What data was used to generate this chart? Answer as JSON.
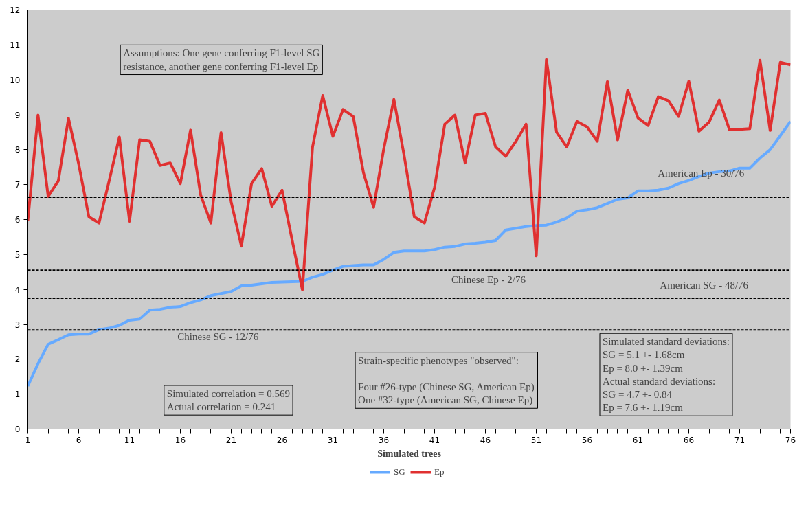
{
  "chart_data": {
    "type": "line",
    "xlabel": "Simulated trees",
    "x": [
      1,
      2,
      3,
      4,
      5,
      6,
      7,
      8,
      9,
      10,
      11,
      12,
      13,
      14,
      15,
      16,
      17,
      18,
      19,
      20,
      21,
      22,
      23,
      24,
      25,
      26,
      27,
      28,
      29,
      30,
      31,
      32,
      33,
      34,
      35,
      36,
      37,
      38,
      39,
      40,
      41,
      42,
      43,
      44,
      45,
      46,
      47,
      48,
      49,
      50,
      51,
      52,
      53,
      54,
      55,
      56,
      57,
      58,
      59,
      60,
      61,
      62,
      63,
      64,
      65,
      66,
      67,
      68,
      69,
      70,
      71,
      72,
      73,
      74,
      75,
      76
    ],
    "series": [
      {
        "name": "SG",
        "color": "#66aaff",
        "values": [
          1.23,
          1.87,
          2.43,
          2.56,
          2.7,
          2.72,
          2.72,
          2.85,
          2.89,
          2.97,
          3.12,
          3.15,
          3.41,
          3.43,
          3.49,
          3.51,
          3.62,
          3.7,
          3.82,
          3.88,
          3.94,
          4.1,
          4.12,
          4.16,
          4.2,
          4.21,
          4.22,
          4.23,
          4.35,
          4.43,
          4.55,
          4.66,
          4.68,
          4.7,
          4.7,
          4.86,
          5.06,
          5.1,
          5.1,
          5.1,
          5.14,
          5.21,
          5.23,
          5.3,
          5.32,
          5.35,
          5.4,
          5.7,
          5.75,
          5.8,
          5.83,
          5.84,
          5.93,
          6.04,
          6.24,
          6.28,
          6.34,
          6.46,
          6.58,
          6.62,
          6.82,
          6.82,
          6.84,
          6.9,
          7.03,
          7.12,
          7.23,
          7.33,
          7.37,
          7.39,
          7.47,
          7.47,
          7.76,
          8.0,
          8.4,
          8.81
        ]
      },
      {
        "name": "Ep",
        "color": "#e03030",
        "values": [
          5.97,
          8.99,
          6.66,
          7.11,
          8.9,
          7.59,
          6.08,
          5.9,
          7.11,
          8.36,
          5.95,
          8.28,
          8.24,
          7.55,
          7.62,
          7.03,
          8.56,
          6.7,
          5.9,
          8.49,
          6.5,
          5.24,
          7.03,
          7.46,
          6.38,
          6.84,
          5.4,
          3.99,
          8.08,
          9.55,
          8.38,
          9.15,
          8.95,
          7.35,
          6.35,
          8.02,
          9.44,
          7.84,
          6.08,
          5.9,
          6.92,
          8.73,
          8.99,
          7.62,
          8.99,
          9.04,
          8.08,
          7.81,
          8.24,
          8.73,
          4.96,
          10.58,
          8.5,
          8.08,
          8.81,
          8.65,
          8.24,
          9.95,
          8.28,
          9.7,
          8.91,
          8.69,
          9.52,
          9.4,
          8.95,
          9.96,
          8.53,
          8.79,
          9.42,
          8.57,
          8.58,
          8.6,
          10.56,
          8.55,
          10.5,
          10.43
        ]
      }
    ],
    "xlim": [
      1,
      76
    ],
    "xticks": [
      1,
      {
        "value": 2,
        "label": null
      },
      {
        "value": 3,
        "label": null
      },
      {
        "value": 4,
        "label": null
      },
      {
        "value": 5,
        "label": null
      },
      6,
      {
        "value": 7,
        "label": null
      },
      {
        "value": 8,
        "label": null
      },
      {
        "value": 9,
        "label": null
      },
      {
        "value": 10,
        "label": null
      },
      11,
      {
        "value": 12,
        "label": null
      },
      {
        "value": 13,
        "label": null
      },
      {
        "value": 14,
        "label": null
      },
      {
        "value": 15,
        "label": null
      },
      16,
      {
        "value": 17,
        "label": null
      },
      {
        "value": 18,
        "label": null
      },
      {
        "value": 19,
        "label": null
      },
      {
        "value": 20,
        "label": null
      },
      21,
      {
        "value": 22,
        "label": null
      },
      {
        "value": 23,
        "label": null
      },
      {
        "value": 24,
        "label": null
      },
      {
        "value": 25,
        "label": null
      },
      26,
      {
        "value": 27,
        "label": null
      },
      {
        "value": 28,
        "label": null
      },
      {
        "value": 29,
        "label": null
      },
      {
        "value": 30,
        "label": null
      },
      31,
      {
        "value": 32,
        "label": null
      },
      {
        "value": 33,
        "label": null
      },
      {
        "value": 34,
        "label": null
      },
      {
        "value": 35,
        "label": null
      },
      36,
      {
        "value": 37,
        "label": null
      },
      {
        "value": 38,
        "label": null
      },
      {
        "value": 39,
        "label": null
      },
      {
        "value": 40,
        "label": null
      },
      41,
      {
        "value": 42,
        "label": null
      },
      {
        "value": 43,
        "label": null
      },
      {
        "value": 44,
        "label": null
      },
      {
        "value": 45,
        "label": null
      },
      46,
      {
        "value": 47,
        "label": null
      },
      {
        "value": 48,
        "label": null
      },
      {
        "value": 49,
        "label": null
      },
      {
        "value": 50,
        "label": null
      },
      51,
      {
        "value": 52,
        "label": null
      },
      {
        "value": 53,
        "label": null
      },
      {
        "value": 54,
        "label": null
      },
      {
        "value": 55,
        "label": null
      },
      56,
      {
        "value": 57,
        "label": null
      },
      {
        "value": 58,
        "label": null
      },
      {
        "value": 59,
        "label": null
      },
      {
        "value": 60,
        "label": null
      },
      61,
      {
        "value": 62,
        "label": null
      },
      {
        "value": 63,
        "label": null
      },
      {
        "value": 64,
        "label": null
      },
      {
        "value": 65,
        "label": null
      },
      66,
      {
        "value": 67,
        "label": null
      },
      {
        "value": 68,
        "label": null
      },
      {
        "value": 69,
        "label": null
      },
      {
        "value": 70,
        "label": null
      },
      71,
      {
        "value": 72,
        "label": null
      },
      {
        "value": 73,
        "label": null
      },
      {
        "value": 74,
        "label": null
      },
      {
        "value": 75,
        "label": null
      },
      76
    ],
    "ylim": [
      0,
      12
    ],
    "yticks": [
      0,
      1,
      2,
      3,
      4,
      5,
      6,
      7,
      8,
      9,
      10,
      11,
      12
    ],
    "grid": false,
    "legend": "bottom",
    "marker": "none",
    "line_style": "solid",
    "ref_lines": [
      {
        "axis": "y",
        "value": 6.64,
        "color": "#000000",
        "line_style": "dashed"
      },
      {
        "axis": "y",
        "value": 4.55,
        "color": "#000000",
        "line_style": "dashed"
      },
      {
        "axis": "y",
        "value": 3.75,
        "color": "#000000",
        "line_style": "dashed"
      },
      {
        "axis": "y",
        "value": 2.84,
        "color": "#000000",
        "line_style": "dashed"
      }
    ],
    "annotations": [
      "Assumptions: One gene conferring F1-level SG\nresistance, another gene conferring F1-level Ep",
      "Simulated correlation = 0.569\nActual correlation = 0.241",
      "Strain-specific phenotypes \"observed\":\n\nFour #26-type (Chinese SG, American Ep)\nOne #32-type (American SG, Chinese Ep)",
      "Simulated standard deviations:\nSG = 5.1 +-  1.68cm\nEp = 8.0 +- 1.39cm\nActual standard deviations:\nSG = 4.7 +- 0.84\nEp = 7.6 +- 1.19cm",
      "American Ep - 30/76",
      "Chinese Ep - 2/76",
      "American SG - 48/76",
      "Chinese SG - 12/76"
    ]
  }
}
